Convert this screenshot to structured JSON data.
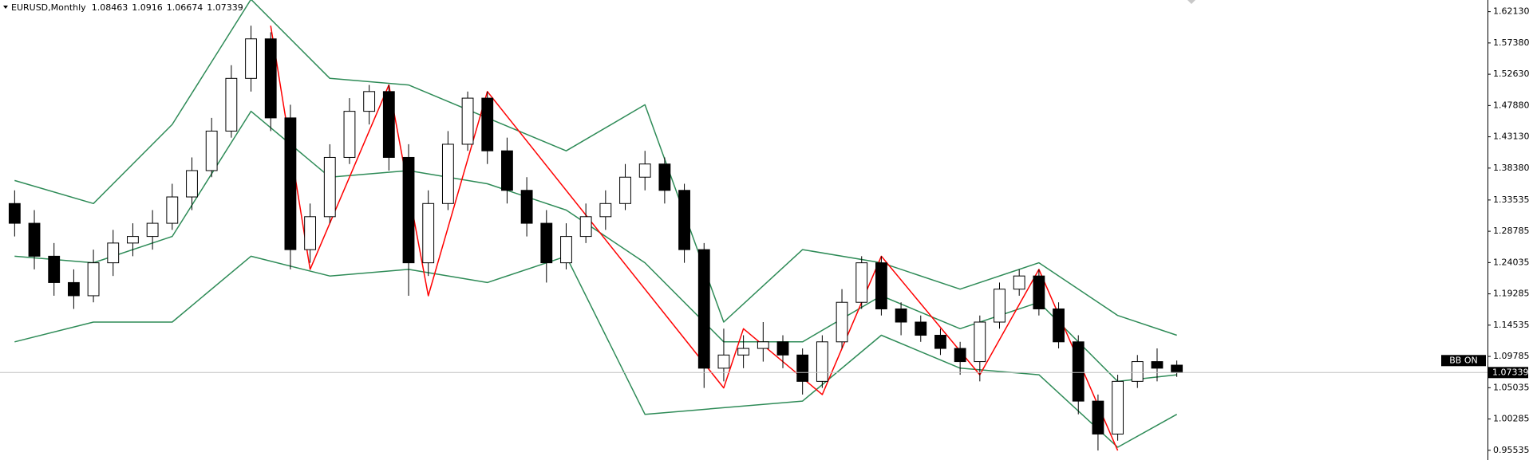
{
  "chart_data": {
    "type": "candlestick",
    "symbol": "EURUSD,Monthly",
    "badge": "BB ON",
    "open": [
      1.33,
      1.3,
      1.25,
      1.21,
      1.19,
      1.24,
      1.27,
      1.28,
      1.3,
      1.34,
      1.38,
      1.44,
      1.52,
      1.58,
      1.46,
      1.26,
      1.31,
      1.4,
      1.47,
      1.5,
      1.4,
      1.24,
      1.33,
      1.42,
      1.49,
      1.41,
      1.35,
      1.3,
      1.24,
      1.28,
      1.31,
      1.33,
      1.37,
      1.39,
      1.35,
      1.26,
      1.08,
      1.1,
      1.11,
      1.12,
      1.1,
      1.06,
      1.12,
      1.18,
      1.24,
      1.17,
      1.15,
      1.13,
      1.11,
      1.09,
      1.15,
      1.2,
      1.22,
      1.17,
      1.12,
      1.03,
      0.98,
      1.06,
      1.09,
      1.08463
    ],
    "high": [
      1.35,
      1.32,
      1.27,
      1.23,
      1.26,
      1.29,
      1.3,
      1.32,
      1.36,
      1.4,
      1.46,
      1.54,
      1.6,
      1.59,
      1.48,
      1.33,
      1.42,
      1.49,
      1.51,
      1.51,
      1.42,
      1.35,
      1.44,
      1.5,
      1.5,
      1.43,
      1.37,
      1.32,
      1.3,
      1.33,
      1.35,
      1.39,
      1.41,
      1.4,
      1.36,
      1.27,
      1.14,
      1.13,
      1.15,
      1.13,
      1.11,
      1.13,
      1.2,
      1.25,
      1.25,
      1.18,
      1.16,
      1.14,
      1.12,
      1.16,
      1.21,
      1.23,
      1.23,
      1.18,
      1.13,
      1.04,
      1.07,
      1.1,
      1.11,
      1.0916
    ],
    "low": [
      1.28,
      1.23,
      1.19,
      1.17,
      1.18,
      1.22,
      1.25,
      1.26,
      1.29,
      1.32,
      1.37,
      1.43,
      1.5,
      1.44,
      1.23,
      1.24,
      1.3,
      1.39,
      1.45,
      1.38,
      1.19,
      1.22,
      1.32,
      1.41,
      1.39,
      1.33,
      1.28,
      1.21,
      1.23,
      1.27,
      1.29,
      1.32,
      1.35,
      1.33,
      1.24,
      1.05,
      1.06,
      1.08,
      1.09,
      1.08,
      1.04,
      1.05,
      1.11,
      1.17,
      1.16,
      1.13,
      1.12,
      1.1,
      1.07,
      1.06,
      1.14,
      1.19,
      1.16,
      1.11,
      1.01,
      0.955,
      0.97,
      1.05,
      1.06,
      1.06674
    ],
    "close": [
      1.3,
      1.25,
      1.21,
      1.19,
      1.24,
      1.27,
      1.28,
      1.3,
      1.34,
      1.38,
      1.44,
      1.52,
      1.58,
      1.46,
      1.26,
      1.31,
      1.4,
      1.47,
      1.5,
      1.4,
      1.24,
      1.33,
      1.42,
      1.49,
      1.41,
      1.35,
      1.3,
      1.24,
      1.28,
      1.31,
      1.33,
      1.37,
      1.39,
      1.35,
      1.26,
      1.08,
      1.1,
      1.11,
      1.12,
      1.1,
      1.06,
      1.12,
      1.18,
      1.24,
      1.17,
      1.15,
      1.13,
      1.11,
      1.09,
      1.15,
      1.2,
      1.22,
      1.17,
      1.12,
      1.03,
      0.98,
      1.06,
      1.09,
      1.08,
      1.07339
    ],
    "up_color": "#ffffff",
    "down_color": "#000000",
    "overlays": [
      {
        "color": "#2e8b57",
        "x": [
          0,
          4,
          8,
          12,
          16,
          20,
          24,
          28,
          32,
          36,
          40,
          44,
          48,
          52,
          56,
          59
        ],
        "values": [
          1.365,
          1.33,
          1.45,
          1.64,
          1.52,
          1.51,
          1.46,
          1.41,
          1.48,
          1.15,
          1.26,
          1.24,
          1.2,
          1.24,
          1.16,
          1.13
        ]
      },
      {
        "color": "#2e8b57",
        "x": [
          0,
          4,
          8,
          12,
          16,
          20,
          24,
          28,
          32,
          36,
          40,
          44,
          48,
          52,
          56,
          59
        ],
        "values": [
          1.25,
          1.24,
          1.28,
          1.47,
          1.37,
          1.38,
          1.36,
          1.32,
          1.24,
          1.12,
          1.12,
          1.19,
          1.14,
          1.18,
          1.06,
          1.07
        ]
      },
      {
        "color": "#2e8b57",
        "x": [
          0,
          4,
          8,
          12,
          16,
          20,
          24,
          28,
          32,
          36,
          40,
          44,
          48,
          52,
          56,
          59
        ],
        "values": [
          1.12,
          1.15,
          1.15,
          1.25,
          1.22,
          1.23,
          1.21,
          1.25,
          1.01,
          1.02,
          1.03,
          1.13,
          1.08,
          1.07,
          0.96,
          1.01
        ]
      },
      {
        "color": "#ff0000",
        "x": [
          13,
          15,
          19,
          21,
          24,
          36,
          37,
          41,
          44,
          49,
          52,
          56
        ],
        "values": [
          1.6,
          1.23,
          1.51,
          1.19,
          1.5,
          1.05,
          1.14,
          1.04,
          1.25,
          1.07,
          1.23,
          0.955
        ]
      }
    ],
    "ylim": [
      0.9406,
      1.639
    ],
    "yticks": [
      {
        "value": 1.6213,
        "label": "1.62130"
      },
      {
        "value": 1.5738,
        "label": "1.57380"
      },
      {
        "value": 1.5263,
        "label": "1.52630"
      },
      {
        "value": 1.4788,
        "label": "1.47880"
      },
      {
        "value": 1.4313,
        "label": "1.43130"
      },
      {
        "value": 1.3838,
        "label": "1.38380"
      },
      1.33535,
      1.28785,
      1.24035,
      1.19285,
      1.14535,
      1.09785,
      1.05035,
      1.00285,
      0.95535
    ],
    "grid": false
  }
}
